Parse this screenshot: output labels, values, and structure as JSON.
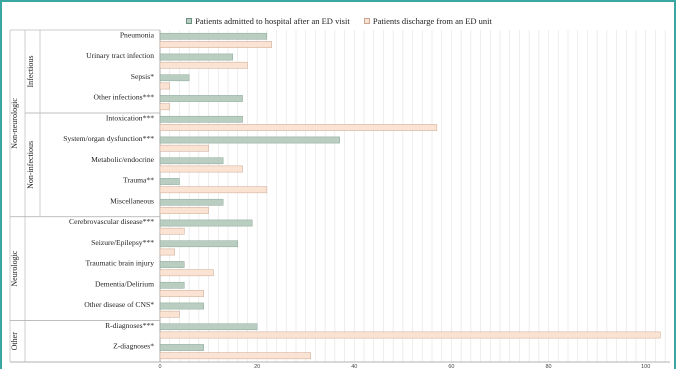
{
  "colors": {
    "admitted": "#b9cdc1",
    "discharged": "#fbe3d3",
    "admitted_stroke": "#7a9a88",
    "discharged_stroke": "#caa58f",
    "frame": "#3aa7a0",
    "grid": "#e3e3e3"
  },
  "chart_data": {
    "type": "bar",
    "orientation": "horizontal",
    "title": "",
    "xlabel": "",
    "ylabel": "",
    "xlim": [
      0,
      105
    ],
    "x_ticks": [
      "0",
      "20",
      "40",
      "60",
      "80",
      "100"
    ],
    "grid": "vertical",
    "legend_position": "top",
    "series": [
      {
        "name": "Patients admitted to hospital after an ED visit"
      },
      {
        "name": "Patients discharge from an ED unit"
      }
    ],
    "groups": [
      {
        "label": "Non-neurologic",
        "subgroups": [
          {
            "label": "Infectious",
            "categories": [
              {
                "label": "Pneumonia",
                "admitted": 22,
                "discharged": 23
              },
              {
                "label": "Urinary tract infection",
                "admitted": 15,
                "discharged": 18
              },
              {
                "label": "Sepsis*",
                "admitted": 6,
                "discharged": 2
              },
              {
                "label": "Other infections***",
                "admitted": 17,
                "discharged": 2
              }
            ]
          },
          {
            "label": "Non-infectious",
            "categories": [
              {
                "label": "Intoxication***",
                "admitted": 17,
                "discharged": 57
              },
              {
                "label": "System/organ dysfunction***",
                "admitted": 37,
                "discharged": 10
              },
              {
                "label": "Metabolic/endocrine",
                "admitted": 13,
                "discharged": 17
              },
              {
                "label": "Trauma**",
                "admitted": 4,
                "discharged": 22
              },
              {
                "label": "Miscellaneous",
                "admitted": 13,
                "discharged": 10
              }
            ]
          }
        ]
      },
      {
        "label": "Neurologic",
        "subgroups": [
          {
            "label": "",
            "categories": [
              {
                "label": "Cerebrovascular disease***",
                "admitted": 19,
                "discharged": 5
              },
              {
                "label": "Seizure/Epilepsy***",
                "admitted": 16,
                "discharged": 3
              },
              {
                "label": "Traumatic brain injury",
                "admitted": 5,
                "discharged": 11
              },
              {
                "label": "Dementia/Delirium",
                "admitted": 5,
                "discharged": 9
              },
              {
                "label": "Other disease of CNS*",
                "admitted": 9,
                "discharged": 4
              }
            ]
          }
        ]
      },
      {
        "label": "Other",
        "subgroups": [
          {
            "label": "",
            "categories": [
              {
                "label": "R-diagnoses***",
                "admitted": 20,
                "discharged": 103
              },
              {
                "label": "Z-diagnoses*",
                "admitted": 9,
                "discharged": 31
              }
            ]
          }
        ]
      }
    ]
  }
}
